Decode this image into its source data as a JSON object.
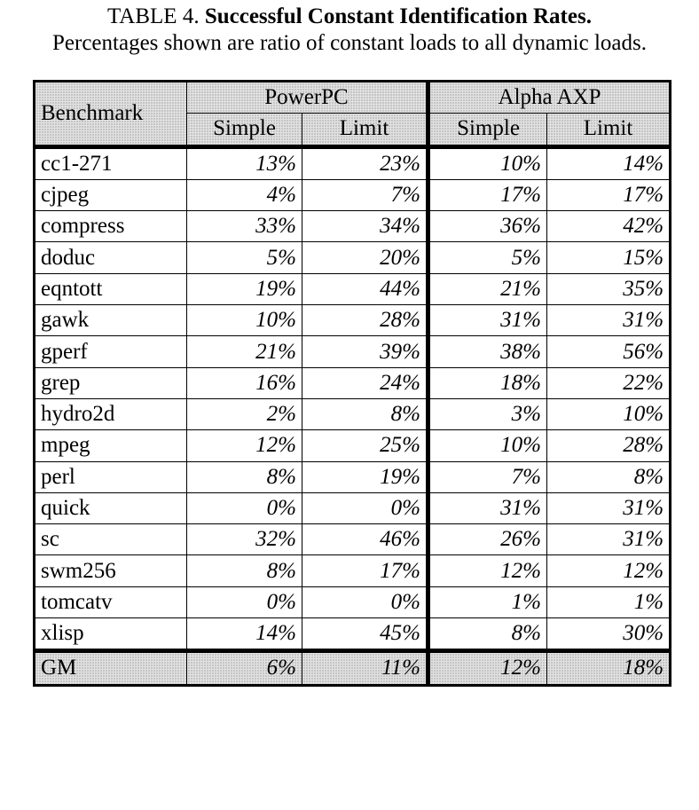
{
  "caption": {
    "label": "TABLE 4.",
    "title": "Successful Constant Identification Rates.",
    "subtitle": "Percentages shown are ratio of constant loads to all dynamic loads."
  },
  "table": {
    "benchmark_header": "Benchmark",
    "groups": [
      "PowerPC",
      "Alpha AXP"
    ],
    "subheaders": [
      "Simple",
      "Limit",
      "Simple",
      "Limit"
    ],
    "rows": [
      {
        "name": "cc1-271",
        "values": [
          "13%",
          "23%",
          "10%",
          "14%"
        ]
      },
      {
        "name": "cjpeg",
        "values": [
          "4%",
          "7%",
          "17%",
          "17%"
        ]
      },
      {
        "name": "compress",
        "values": [
          "33%",
          "34%",
          "36%",
          "42%"
        ]
      },
      {
        "name": "doduc",
        "values": [
          "5%",
          "20%",
          "5%",
          "15%"
        ]
      },
      {
        "name": "eqntott",
        "values": [
          "19%",
          "44%",
          "21%",
          "35%"
        ]
      },
      {
        "name": "gawk",
        "values": [
          "10%",
          "28%",
          "31%",
          "31%"
        ]
      },
      {
        "name": "gperf",
        "values": [
          "21%",
          "39%",
          "38%",
          "56%"
        ]
      },
      {
        "name": "grep",
        "values": [
          "16%",
          "24%",
          "18%",
          "22%"
        ]
      },
      {
        "name": "hydro2d",
        "values": [
          "2%",
          "8%",
          "3%",
          "10%"
        ]
      },
      {
        "name": "mpeg",
        "values": [
          "12%",
          "25%",
          "10%",
          "28%"
        ]
      },
      {
        "name": "perl",
        "values": [
          "8%",
          "19%",
          "7%",
          "8%"
        ]
      },
      {
        "name": "quick",
        "values": [
          "0%",
          "0%",
          "31%",
          "31%"
        ]
      },
      {
        "name": "sc",
        "values": [
          "32%",
          "46%",
          "26%",
          "31%"
        ]
      },
      {
        "name": "swm256",
        "values": [
          "8%",
          "17%",
          "12%",
          "12%"
        ]
      },
      {
        "name": "tomcatv",
        "values": [
          "0%",
          "0%",
          "1%",
          "1%"
        ]
      },
      {
        "name": "xlisp",
        "values": [
          "14%",
          "45%",
          "8%",
          "30%"
        ]
      }
    ],
    "summary": {
      "name": "GM",
      "values": [
        "6%",
        "11%",
        "12%",
        "18%"
      ]
    }
  }
}
